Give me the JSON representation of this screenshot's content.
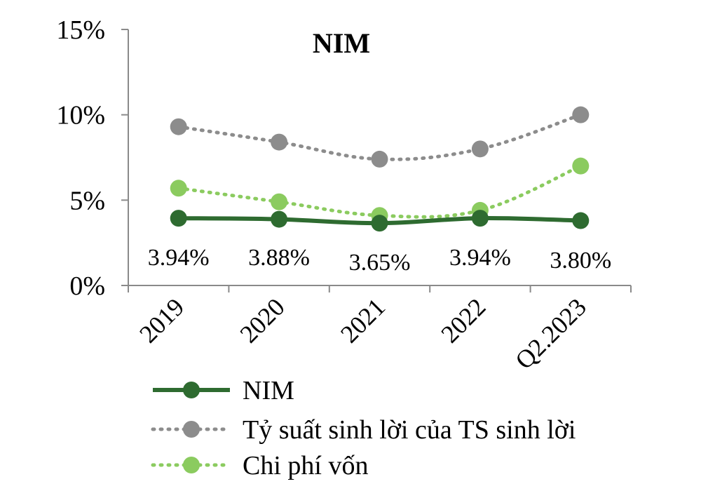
{
  "chart_data": {
    "type": "line",
    "title": "NIM",
    "categories": [
      "2019",
      "2020",
      "2021",
      "2022",
      "Q2.2023"
    ],
    "yticks": [
      "0%",
      "5%",
      "10%",
      "15%"
    ],
    "ylim": [
      0,
      15
    ],
    "ytick_values": [
      0,
      5,
      10,
      15
    ],
    "grid": false,
    "legend_position": "bottom",
    "series": [
      {
        "name": "NIM",
        "values": [
          3.94,
          3.88,
          3.65,
          3.94,
          3.8
        ],
        "data_labels": [
          "3.94%",
          "3.88%",
          "3.65%",
          "3.94%",
          "3.80%"
        ],
        "color": "#2e6b30",
        "style": "solid"
      },
      {
        "name": "Tỷ suất sinh lời của TS sinh lời",
        "values": [
          9.3,
          8.4,
          7.4,
          8.0,
          10.0
        ],
        "color": "#8c8c8c",
        "style": "dotted"
      },
      {
        "name": "Chi phí vốn",
        "values": [
          5.7,
          4.9,
          4.1,
          4.4,
          7.0
        ],
        "color": "#8bcb5f",
        "style": "dotted"
      }
    ]
  }
}
